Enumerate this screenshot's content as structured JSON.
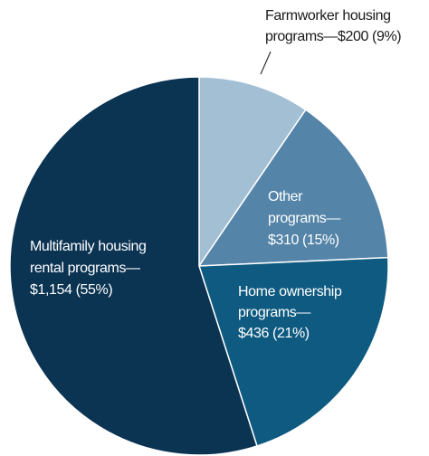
{
  "chart_data": {
    "type": "pie",
    "categories": [
      "Farmworker housing programs—",
      "Other programs—",
      "Home ownership programs—",
      "Multifamily housing rental programs—"
    ],
    "values": [
      200,
      310,
      436,
      1154
    ],
    "value_labels": [
      "$200 (9%)",
      "$310 (15%)",
      "$436 (21%)",
      "$1,154 (55%)"
    ],
    "colors": [
      "#a3bfd4",
      "#5484a8",
      "#0f5a80",
      "#0b3352"
    ]
  }
}
